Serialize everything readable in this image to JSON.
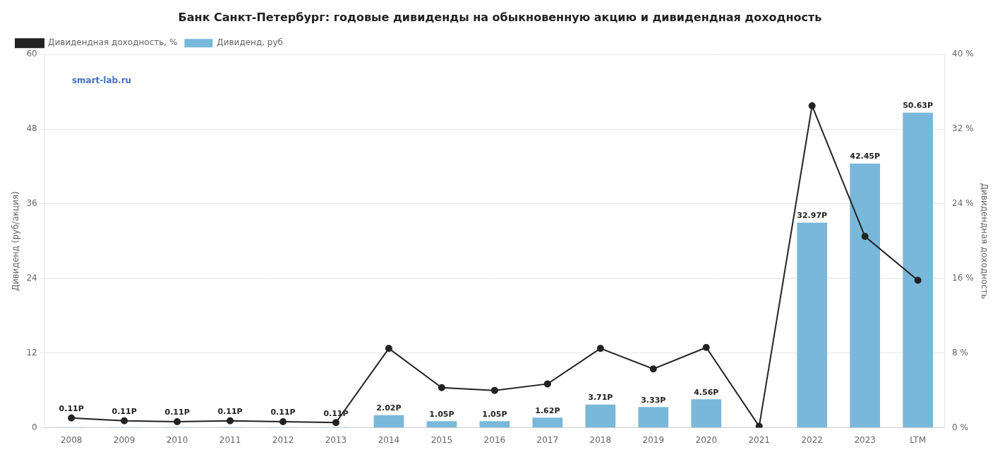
{
  "chart_data": {
    "type": "bar",
    "title": "Банк Санкт-Петербург: годовые дивиденды на обыкновенную акцию и дивидендная доходность",
    "categories": [
      "2008",
      "2009",
      "2010",
      "2011",
      "2012",
      "2013",
      "2014",
      "2015",
      "2016",
      "2017",
      "2018",
      "2019",
      "2020",
      "2021",
      "2022",
      "2023",
      "LTM"
    ],
    "series": [
      {
        "name": "Дивиденд, руб",
        "type": "bar",
        "color": "#79B8DA",
        "values": [
          0.11,
          0.11,
          0.11,
          0.11,
          0.11,
          0.11,
          2.02,
          1.05,
          1.05,
          1.62,
          3.71,
          3.33,
          4.56,
          0.0,
          32.97,
          42.45,
          50.63
        ],
        "data_labels": true,
        "value_labels": [
          "0.11Р",
          "0.11Р",
          "0.11Р",
          "0.11Р",
          "0.11Р",
          "0.11Р",
          "2.02Р",
          "1.05Р",
          "1.05Р",
          "1.62Р",
          "3.71Р",
          "3.33Р",
          "4.56Р",
          null,
          "32.97Р",
          "42.45Р",
          "50.63Р"
        ]
      },
      {
        "name": "Дивидендная доходность, %",
        "type": "line",
        "axis": "y2",
        "color": "#222222",
        "marker": "circle",
        "line_style": "solid",
        "values": [
          1.05,
          0.75,
          0.65,
          0.75,
          0.65,
          0.55,
          8.5,
          4.3,
          4.0,
          4.7,
          8.5,
          6.3,
          8.6,
          0.15,
          34.5,
          20.5,
          15.8
        ]
      }
    ],
    "ylabel": "Дивиденд (руб/акция)",
    "y2label": "Дивидендная доходность",
    "ylim": [
      0,
      60
    ],
    "yticks": [
      0,
      12,
      24,
      36,
      48,
      60
    ],
    "y2lim": [
      0,
      40
    ],
    "y2ticks": [
      {
        "value": 0,
        "label": "0 %"
      },
      {
        "value": 8,
        "label": "8 %"
      },
      {
        "value": 16,
        "label": "16 %"
      },
      {
        "value": 24,
        "label": "24 %"
      },
      {
        "value": 32,
        "label": "32 %"
      },
      {
        "value": 40,
        "label": "40 %"
      }
    ],
    "grid": true,
    "legend": "upper left",
    "annotations": [
      {
        "text": "smart-lab.ru",
        "color": "#4472C4"
      }
    ]
  }
}
